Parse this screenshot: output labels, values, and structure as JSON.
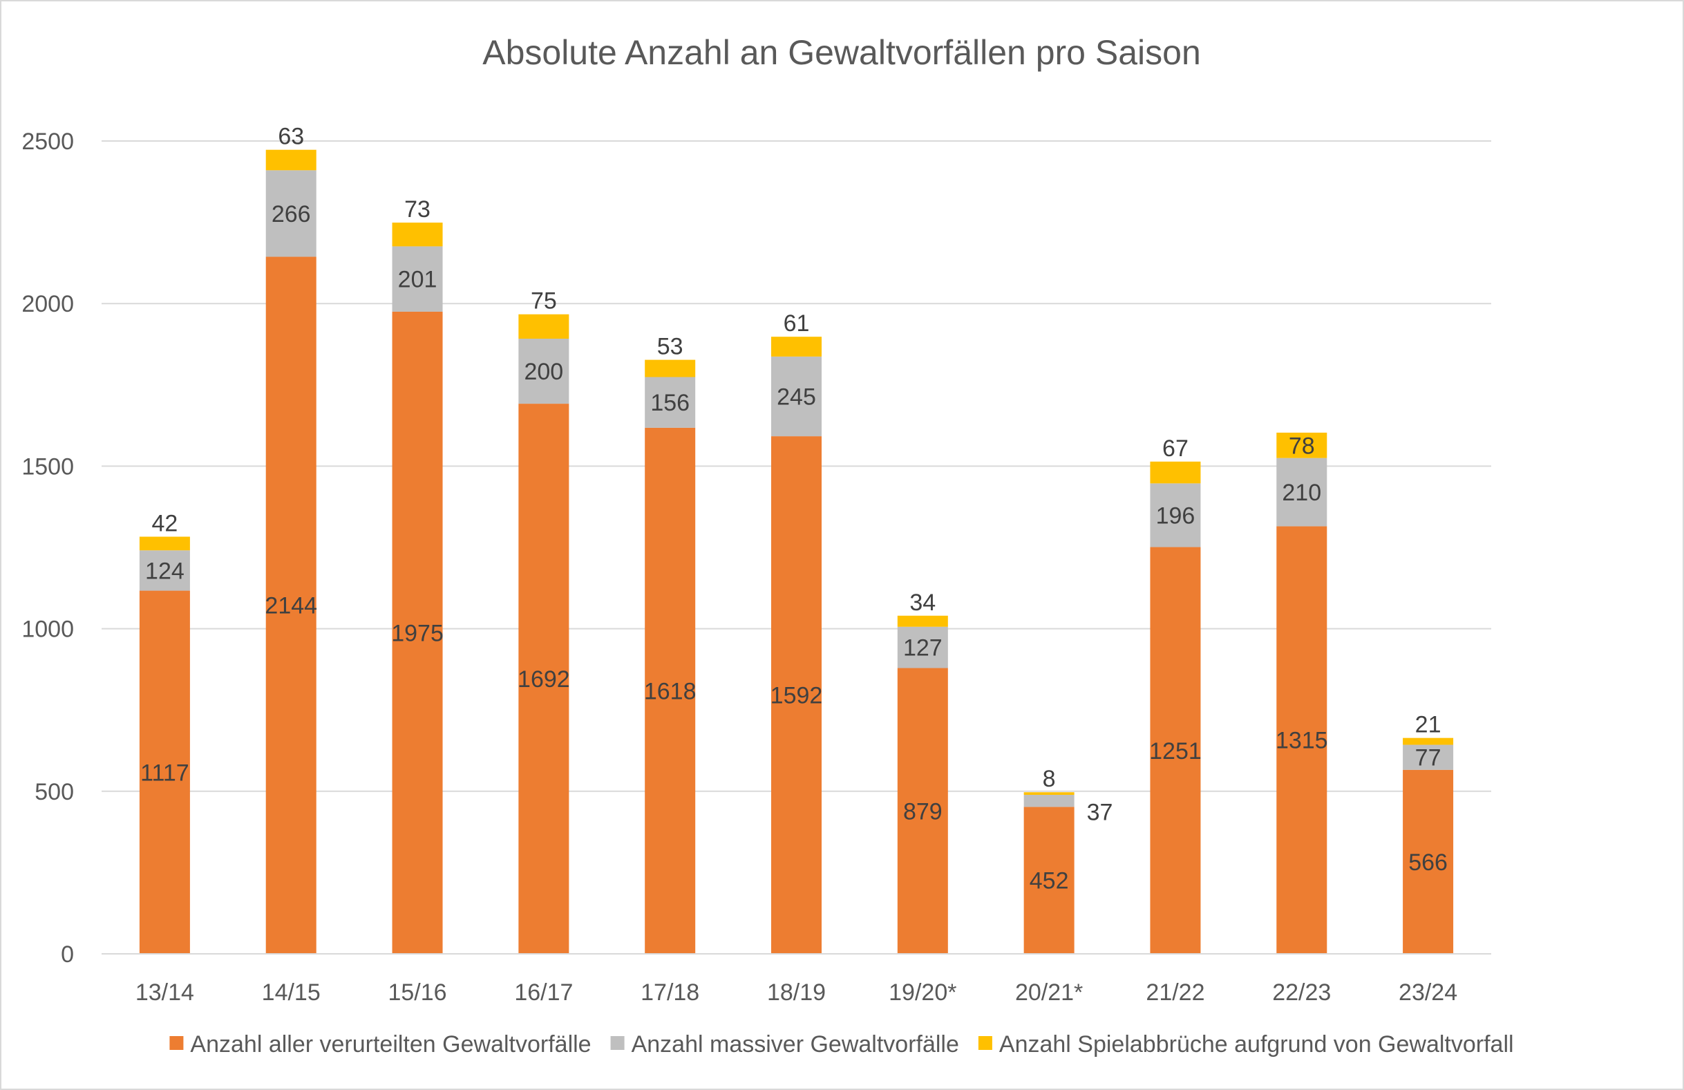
{
  "chart_data": {
    "type": "bar",
    "stacked": true,
    "title": "Absolute Anzahl an Gewaltvorfällen pro Saison",
    "xlabel": "",
    "ylabel": "",
    "ylim": [
      0,
      2500
    ],
    "yticks": [
      "0",
      "500",
      "1000",
      "1500",
      "2000",
      "2500"
    ],
    "grid": true,
    "legend_position": "bottom",
    "categories": [
      "13/14",
      "14/15",
      "15/16",
      "16/17",
      "17/18",
      "18/19",
      "19/20*",
      "20/21*",
      "21/22",
      "22/23",
      "23/24"
    ],
    "series": [
      {
        "name": "Anzahl aller verurteilten Gewaltvorfälle",
        "color": "#ED7D31",
        "values": [
          1117,
          2144,
          1975,
          1692,
          1618,
          1592,
          879,
          452,
          1251,
          1315,
          566
        ]
      },
      {
        "name": "Anzahl massiver Gewaltvorfälle",
        "color": "#BFBFBF",
        "values": [
          124,
          266,
          201,
          200,
          156,
          245,
          127,
          37,
          196,
          210,
          77
        ]
      },
      {
        "name": "Anzahl Spielabbrüche aufgrund von Gewaltvorfall",
        "color": "#FFC000",
        "values": [
          42,
          63,
          73,
          75,
          53,
          61,
          34,
          8,
          67,
          78,
          21
        ]
      }
    ]
  }
}
